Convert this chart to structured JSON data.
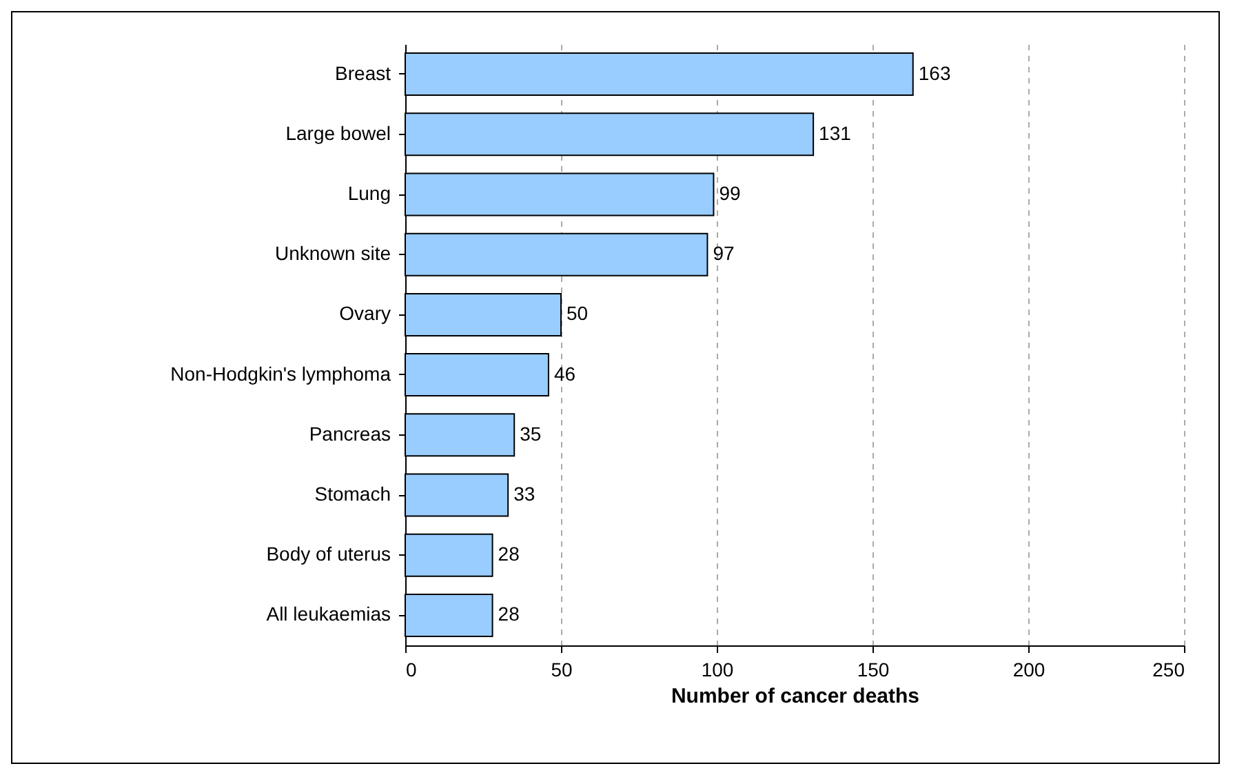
{
  "chart_data": {
    "type": "bar",
    "orientation": "horizontal",
    "xlabel": "Number of cancer deaths",
    "categories": [
      "Breast",
      "Large bowel",
      "Lung",
      "Unknown site",
      "Ovary",
      "Non-Hodgkin's lymphoma",
      "Pancreas",
      "Stomach",
      "Body of uterus",
      "All leukaemias"
    ],
    "values": [
      163,
      131,
      99,
      97,
      50,
      46,
      35,
      33,
      28,
      28
    ],
    "color": "#99ccff",
    "xlim": [
      0,
      250
    ],
    "xticks": [
      0,
      50,
      100,
      150,
      200,
      250
    ],
    "grid": "x",
    "data_labels": true
  }
}
